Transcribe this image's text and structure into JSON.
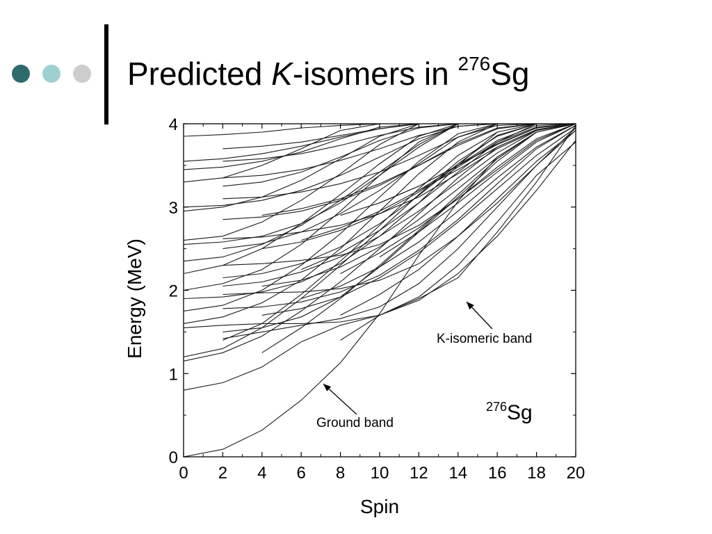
{
  "slide": {
    "title_prefix": "Predicted ",
    "title_italic": "K",
    "title_mid": "-isomers in ",
    "title_sup": "276",
    "title_suffix": "Sg",
    "bullet_colors": [
      "#2f6a6d",
      "#9ed0d0",
      "#cccccc"
    ],
    "bar_color": "#000000"
  },
  "chart_data": {
    "type": "line",
    "xlabel": "Spin",
    "ylabel": "Energy (MeV)",
    "xlim": [
      0,
      20
    ],
    "ylim": [
      0,
      4
    ],
    "xticks": [
      0,
      2,
      4,
      6,
      8,
      10,
      12,
      14,
      16,
      18,
      20
    ],
    "yticks": [
      0,
      1,
      2,
      3,
      4
    ],
    "grid": false,
    "legend": "none",
    "nucleus_label": {
      "sup": "276",
      "text": "Sg"
    },
    "annotations": [
      {
        "text": "K-isomeric band",
        "point": [
          14.2,
          1.83
        ]
      },
      {
        "text": "Ground band",
        "point": [
          7.0,
          0.88
        ]
      }
    ],
    "series": [
      {
        "x": [
          0,
          2,
          4,
          6,
          8,
          10,
          12,
          14,
          16,
          18,
          20
        ],
        "y": [
          0,
          0.09,
          0.32,
          0.68,
          1.13,
          1.72,
          2.42,
          3.07,
          3.6,
          3.9,
          4.0
        ]
      },
      {
        "x": [
          8,
          10,
          12,
          14,
          16,
          18,
          20
        ],
        "y": [
          1.4,
          1.7,
          1.9,
          2.15,
          2.7,
          3.3,
          3.98
        ]
      },
      {
        "x": [
          0,
          2,
          4,
          6,
          8,
          10,
          12,
          14,
          16,
          18,
          20
        ],
        "y": [
          0.8,
          0.89,
          1.08,
          1.38,
          1.58,
          1.7,
          1.92,
          2.3,
          2.82,
          3.38,
          3.78
        ]
      },
      {
        "x": [
          0,
          2,
          4,
          6,
          8,
          10,
          12,
          14,
          16,
          18,
          20
        ],
        "y": [
          1.15,
          1.25,
          1.45,
          1.75,
          2.1,
          2.5,
          2.92,
          3.35,
          3.72,
          3.93,
          4.0
        ]
      },
      {
        "x": [
          0,
          2,
          4,
          6,
          8,
          10,
          12,
          14,
          16,
          18
        ],
        "y": [
          1.2,
          1.3,
          1.55,
          1.9,
          2.3,
          2.72,
          3.15,
          3.55,
          3.85,
          4.0
        ]
      },
      {
        "x": [
          2,
          4,
          6,
          8,
          10,
          12,
          14,
          16,
          18,
          20
        ],
        "y": [
          1.42,
          1.5,
          1.58,
          1.66,
          1.8,
          2.08,
          2.5,
          3.0,
          3.5,
          3.92
        ]
      },
      {
        "x": [
          4,
          6,
          8,
          10,
          12,
          14,
          16,
          18,
          20
        ],
        "y": [
          1.25,
          1.55,
          1.9,
          2.3,
          2.72,
          3.15,
          3.58,
          3.9,
          4.0
        ]
      },
      {
        "x": [
          2,
          4,
          6,
          8,
          10,
          12,
          14,
          16,
          18
        ],
        "y": [
          1.4,
          1.6,
          1.95,
          2.35,
          2.78,
          3.22,
          3.62,
          3.9,
          4.0
        ]
      },
      {
        "x": [
          8,
          10,
          12,
          14,
          16,
          18,
          20
        ],
        "y": [
          1.7,
          1.95,
          2.25,
          2.65,
          3.1,
          3.55,
          3.92
        ]
      },
      {
        "x": [
          0,
          2,
          4,
          6,
          8,
          10,
          12,
          14,
          16
        ],
        "y": [
          1.6,
          1.68,
          1.85,
          2.12,
          2.5,
          2.95,
          3.4,
          3.78,
          4.0
        ]
      },
      {
        "x": [
          0,
          2,
          4,
          6,
          8,
          10,
          12,
          14,
          16
        ],
        "y": [
          1.75,
          1.82,
          2.0,
          2.3,
          2.68,
          3.12,
          3.55,
          3.88,
          4.0
        ]
      },
      {
        "x": [
          0,
          2,
          4,
          6,
          8,
          10,
          12,
          14
        ],
        "y": [
          2.0,
          2.08,
          2.25,
          2.55,
          2.95,
          3.38,
          3.78,
          4.0
        ]
      },
      {
        "x": [
          0,
          2,
          4,
          6,
          8,
          10,
          12,
          14,
          16
        ],
        "y": [
          1.9,
          1.92,
          1.98,
          2.1,
          2.32,
          2.65,
          3.05,
          3.5,
          3.9
        ]
      },
      {
        "x": [
          2,
          4,
          6,
          8,
          10,
          12,
          14,
          16,
          18
        ],
        "y": [
          1.5,
          1.55,
          1.68,
          1.92,
          2.28,
          2.7,
          3.12,
          3.55,
          3.9
        ]
      },
      {
        "x": [
          0,
          2,
          4,
          6,
          8,
          10,
          12,
          14
        ],
        "y": [
          2.2,
          2.3,
          2.5,
          2.8,
          3.15,
          3.52,
          3.85,
          4.0
        ]
      },
      {
        "x": [
          0,
          2,
          4,
          6,
          8,
          10,
          12,
          14
        ],
        "y": [
          2.35,
          2.4,
          2.55,
          2.78,
          3.08,
          3.42,
          3.75,
          4.0
        ]
      },
      {
        "x": [
          0,
          2,
          4,
          6,
          8,
          10,
          12
        ],
        "y": [
          2.6,
          2.65,
          2.82,
          3.08,
          3.4,
          3.75,
          4.0
        ]
      },
      {
        "x": [
          0,
          2,
          4,
          6,
          8,
          10,
          12,
          14
        ],
        "y": [
          2.55,
          2.58,
          2.65,
          2.8,
          3.05,
          3.38,
          3.72,
          4.0
        ]
      },
      {
        "x": [
          0,
          2,
          4,
          6,
          8,
          10,
          12
        ],
        "y": [
          2.95,
          3.0,
          3.12,
          3.32,
          3.58,
          3.85,
          4.0
        ]
      },
      {
        "x": [
          0,
          2,
          4,
          6,
          8,
          10
        ],
        "y": [
          3.3,
          3.35,
          3.5,
          3.7,
          3.92,
          4.0
        ]
      },
      {
        "x": [
          0,
          2,
          4,
          6,
          8,
          10,
          12
        ],
        "y": [
          3.45,
          3.48,
          3.55,
          3.66,
          3.82,
          3.96,
          4.0
        ]
      },
      {
        "x": [
          0,
          2,
          4,
          6,
          8,
          10
        ],
        "y": [
          3.85,
          3.87,
          3.9,
          3.95,
          3.98,
          4.0
        ]
      },
      {
        "x": [
          0,
          2,
          4,
          6,
          8,
          10,
          12,
          14,
          16,
          18,
          20
        ],
        "y": [
          1.55,
          1.58,
          1.6,
          1.6,
          1.62,
          1.7,
          1.88,
          2.2,
          2.65,
          3.2,
          3.8
        ]
      },
      {
        "x": [
          2,
          4,
          6,
          8,
          10,
          12,
          14,
          16,
          18,
          20
        ],
        "y": [
          1.95,
          1.97,
          1.98,
          2.02,
          2.12,
          2.32,
          2.65,
          3.05,
          3.5,
          3.95
        ]
      },
      {
        "x": [
          2,
          4,
          6,
          8,
          10,
          12,
          14,
          16,
          18,
          20
        ],
        "y": [
          2.3,
          2.32,
          2.36,
          2.42,
          2.55,
          2.78,
          3.1,
          3.45,
          3.8,
          4.0
        ]
      },
      {
        "x": [
          2,
          4,
          6,
          8,
          10,
          12,
          14,
          16,
          18,
          20
        ],
        "y": [
          2.62,
          2.64,
          2.7,
          2.78,
          2.92,
          3.12,
          3.4,
          3.7,
          3.92,
          4.0
        ]
      },
      {
        "x": [
          2,
          4,
          6,
          8,
          10,
          12,
          14,
          16,
          18
        ],
        "y": [
          2.85,
          2.88,
          2.95,
          3.08,
          3.26,
          3.5,
          3.76,
          3.95,
          4.0
        ]
      },
      {
        "x": [
          2,
          4,
          6,
          8,
          10,
          12,
          14,
          16,
          18
        ],
        "y": [
          3.1,
          3.12,
          3.18,
          3.28,
          3.42,
          3.62,
          3.84,
          3.98,
          4.0
        ]
      },
      {
        "x": [
          2,
          4,
          6,
          8,
          10,
          12,
          14,
          16
        ],
        "y": [
          3.35,
          3.38,
          3.45,
          3.56,
          3.7,
          3.86,
          3.97,
          4.0
        ]
      },
      {
        "x": [
          2,
          4,
          6,
          8,
          10,
          12,
          14
        ],
        "y": [
          3.55,
          3.58,
          3.64,
          3.74,
          3.86,
          3.96,
          4.0
        ]
      },
      {
        "x": [
          2,
          4,
          6,
          8,
          10,
          12
        ],
        "y": [
          3.7,
          3.73,
          3.78,
          3.86,
          3.94,
          4.0
        ]
      },
      {
        "x": [
          2,
          4,
          6,
          8,
          10,
          12,
          14,
          16
        ],
        "y": [
          3.25,
          3.3,
          3.42,
          3.6,
          3.8,
          3.95,
          4.0,
          4.0
        ]
      },
      {
        "x": [
          2,
          4,
          6,
          8,
          10,
          12,
          14,
          16,
          18,
          20
        ],
        "y": [
          2.05,
          2.1,
          2.22,
          2.4,
          2.65,
          2.95,
          3.3,
          3.65,
          3.92,
          4.0
        ]
      },
      {
        "x": [
          4,
          6,
          8,
          10,
          12,
          14,
          16,
          18,
          20
        ],
        "y": [
          1.7,
          1.78,
          1.92,
          2.15,
          2.45,
          2.82,
          3.22,
          3.62,
          3.95
        ]
      },
      {
        "x": [
          6,
          8,
          10,
          12,
          14,
          16,
          18,
          20
        ],
        "y": [
          1.9,
          2.05,
          2.28,
          2.58,
          2.95,
          3.35,
          3.72,
          3.98
        ]
      },
      {
        "x": [
          6,
          8,
          10,
          12,
          14,
          16,
          18
        ],
        "y": [
          2.25,
          2.45,
          2.72,
          3.05,
          3.42,
          3.78,
          4.0
        ]
      },
      {
        "x": [
          8,
          10,
          12,
          14,
          16,
          18,
          20
        ],
        "y": [
          2.2,
          2.45,
          2.75,
          3.1,
          3.48,
          3.82,
          4.0
        ]
      },
      {
        "x": [
          10,
          12,
          14,
          16,
          18,
          20
        ],
        "y": [
          2.4,
          2.7,
          3.05,
          3.42,
          3.78,
          4.0
        ]
      },
      {
        "x": [
          6,
          8,
          10,
          12,
          14,
          16,
          18,
          20
        ],
        "y": [
          2.6,
          2.75,
          2.95,
          3.2,
          3.5,
          3.8,
          3.98,
          4.0
        ]
      },
      {
        "x": [
          4,
          6,
          8,
          10,
          12,
          14,
          16,
          18,
          20
        ],
        "y": [
          2.5,
          2.58,
          2.72,
          2.92,
          3.18,
          3.48,
          3.78,
          3.96,
          4.0
        ]
      },
      {
        "x": [
          4,
          6,
          8,
          10,
          12,
          14,
          16,
          18
        ],
        "y": [
          2.9,
          2.98,
          3.1,
          3.28,
          3.5,
          3.74,
          3.94,
          4.0
        ]
      },
      {
        "x": [
          8,
          10,
          12,
          14,
          16,
          18,
          20
        ],
        "y": [
          2.9,
          3.05,
          3.25,
          3.5,
          3.76,
          3.95,
          4.0
        ]
      },
      {
        "x": [
          10,
          12,
          14,
          16,
          18,
          20
        ],
        "y": [
          3.05,
          3.25,
          3.5,
          3.75,
          3.95,
          4.0
        ]
      },
      {
        "x": [
          12,
          14,
          16,
          18,
          20
        ],
        "y": [
          3.2,
          3.45,
          3.72,
          3.93,
          4.0
        ]
      },
      {
        "x": [
          2,
          4,
          6,
          8,
          10,
          12,
          14,
          16,
          18,
          20
        ],
        "y": [
          1.78,
          1.8,
          1.86,
          1.98,
          2.18,
          2.48,
          2.85,
          3.28,
          3.7,
          3.98
        ]
      },
      {
        "x": [
          2,
          4,
          6,
          8,
          10,
          12,
          14,
          16,
          18
        ],
        "y": [
          2.15,
          2.2,
          2.32,
          2.52,
          2.8,
          3.14,
          3.52,
          3.86,
          4.0
        ]
      },
      {
        "x": [
          2,
          4,
          6,
          8,
          10,
          12,
          14,
          16
        ],
        "y": [
          2.5,
          2.56,
          2.7,
          2.92,
          3.2,
          3.52,
          3.84,
          4.0
        ]
      },
      {
        "x": [
          4,
          6,
          8,
          10,
          12,
          14,
          16,
          18,
          20
        ],
        "y": [
          2.05,
          2.12,
          2.28,
          2.52,
          2.85,
          3.22,
          3.6,
          3.9,
          4.0
        ]
      },
      {
        "x": [
          0,
          2,
          4,
          6,
          8,
          10,
          12,
          14,
          16
        ],
        "y": [
          3.0,
          3.02,
          3.08,
          3.2,
          3.38,
          3.6,
          3.82,
          3.97,
          4.0
        ]
      },
      {
        "x": [
          0,
          2,
          4,
          6,
          8,
          10,
          12,
          14
        ],
        "y": [
          3.55,
          3.58,
          3.64,
          3.73,
          3.84,
          3.94,
          4.0,
          4.0
        ]
      }
    ]
  }
}
